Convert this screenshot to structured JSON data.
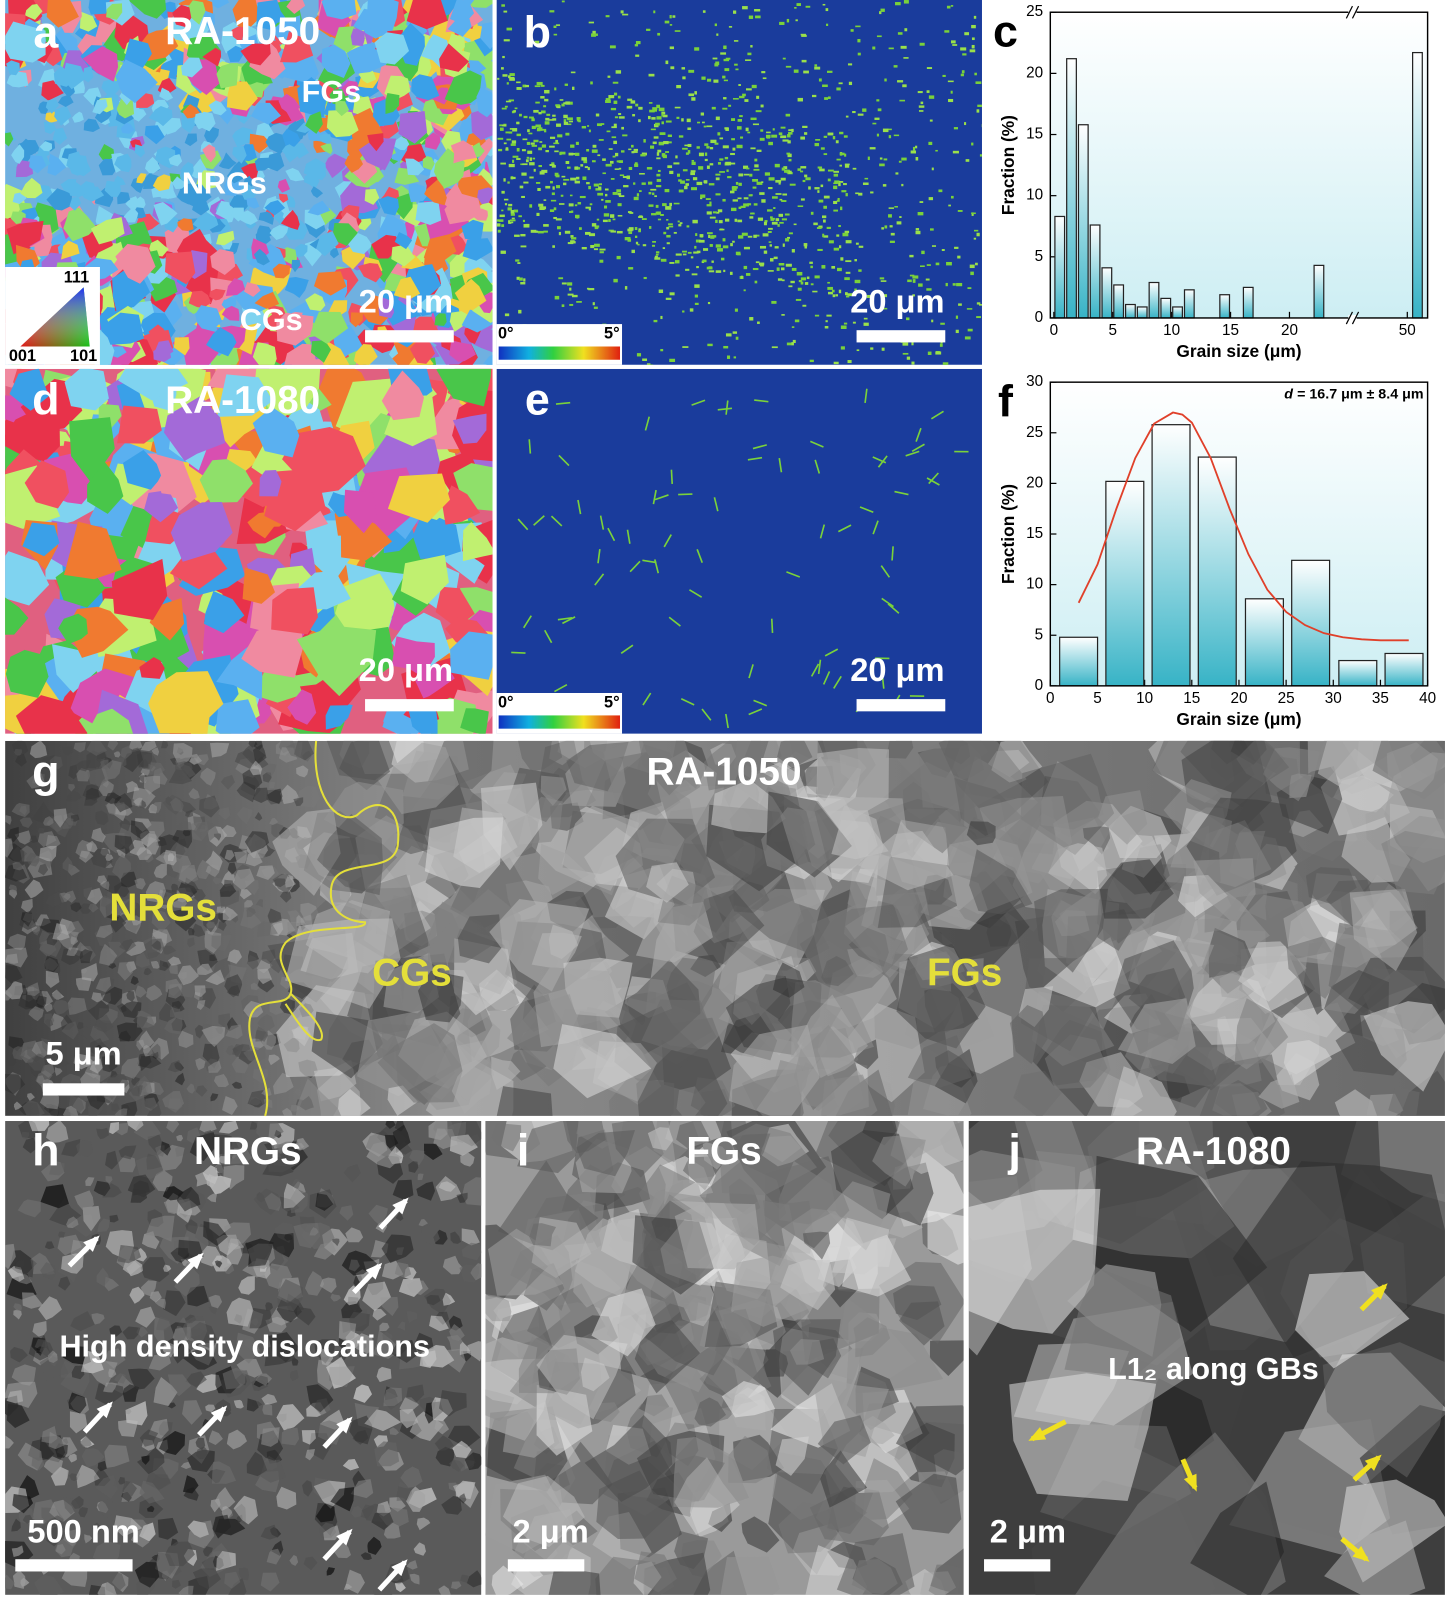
{
  "panels": {
    "a": {
      "letter": "a",
      "label": "RA-1050",
      "annotations": [
        "FGs",
        "NRGs",
        "CGs"
      ],
      "scale_bar": "20 μm",
      "ipf_key": [
        "111",
        "001",
        "101"
      ]
    },
    "b": {
      "letter": "b",
      "scale_bar": "20 μm",
      "colorbar": [
        "0°",
        "5°"
      ]
    },
    "d": {
      "letter": "d",
      "label": "RA-1080",
      "scale_bar": "20 μm"
    },
    "e": {
      "letter": "e",
      "scale_bar": "20 μm",
      "colorbar": [
        "0°",
        "5°"
      ]
    },
    "g": {
      "letter": "g",
      "label": "RA-1050",
      "annotations": [
        "NRGs",
        "CGs",
        "FGs"
      ],
      "scale_bar": "5 μm"
    },
    "h": {
      "letter": "h",
      "label": "NRGs",
      "annotation": "High density dislocations",
      "scale_bar": "500 nm"
    },
    "i": {
      "letter": "i",
      "label": "FGs",
      "scale_bar": "2 μm"
    },
    "j": {
      "letter": "j",
      "label": "RA-1080",
      "annotation": "L1₂ along GBs",
      "scale_bar": "2 μm"
    }
  },
  "chart_data": [
    {
      "type": "bar",
      "panel_letter": "c",
      "x": [
        0.5,
        1.5,
        2.5,
        3.5,
        4.5,
        5.5,
        6.5,
        7.5,
        8.5,
        9.5,
        10.5,
        11.5,
        14.5,
        16.5,
        22.5,
        50.5
      ],
      "values": [
        8.3,
        21.2,
        15.8,
        7.6,
        4.1,
        2.7,
        1.1,
        0.9,
        2.9,
        1.6,
        0.9,
        2.3,
        1.9,
        2.5,
        4.3,
        21.7
      ],
      "xlim": [
        -0.3,
        51
      ],
      "xbreak": [
        25,
        47.5
      ],
      "xticks": [
        0,
        5,
        10,
        15,
        20,
        50
      ],
      "ylim": [
        0,
        25
      ],
      "yticks": [
        0,
        5,
        10,
        15,
        20,
        25
      ],
      "xlabel": "Grain size (μm)",
      "ylabel": "Fraction (%)",
      "bar_color": "#37b3c6"
    },
    {
      "type": "bar",
      "panel_letter": "f",
      "x": [
        3,
        7.9,
        12.8,
        17.7,
        22.7,
        27.6,
        32.6,
        37.5
      ],
      "values": [
        4.8,
        20.2,
        25.8,
        22.6,
        8.6,
        12.4,
        2.5,
        3.2
      ],
      "fit": {
        "color": "#e0402a",
        "x": [
          3,
          5,
          7,
          9,
          11,
          13,
          14,
          15,
          17,
          19,
          21,
          23,
          25,
          27,
          29,
          31,
          33,
          35,
          38
        ],
        "values": [
          8.2,
          12,
          17.5,
          22.5,
          25.9,
          27,
          26.8,
          26,
          22.5,
          17.5,
          13,
          9.5,
          7.3,
          6,
          5.2,
          4.8,
          4.6,
          4.5,
          4.5
        ]
      },
      "xlim": [
        0,
        40
      ],
      "xticks": [
        0,
        5,
        10,
        15,
        20,
        25,
        30,
        35,
        40
      ],
      "ylim": [
        0,
        30
      ],
      "yticks": [
        0,
        5,
        10,
        15,
        20,
        25,
        30
      ],
      "xlabel": "Grain size (μm)",
      "ylabel": "Fraction (%)",
      "annotation_symbol": "d",
      "annotation": "= 16.7 μm ± 8.4 μm",
      "bar_color": "#37b3c6"
    }
  ]
}
